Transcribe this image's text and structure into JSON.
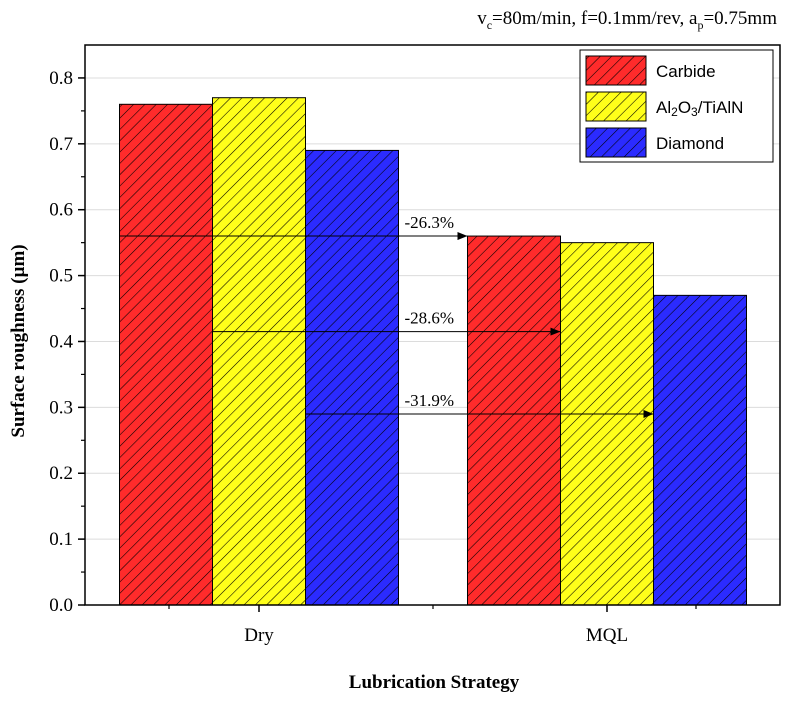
{
  "chart_data": {
    "type": "bar",
    "title": "",
    "conditions": {
      "vc_base": "v",
      "vc_sub": "c",
      "vc_rest": "=80m/min, f=0.1mm/rev, a",
      "ap_sub": "p",
      "ap_rest": "=0.75mm"
    },
    "xlabel": "Lubrication Strategy",
    "ylabel": "Surface roughness (µm)",
    "ylim": [
      0,
      0.85
    ],
    "yticks": [
      "0.0",
      "0.1",
      "0.2",
      "0.3",
      "0.4",
      "0.5",
      "0.6",
      "0.7",
      "0.8"
    ],
    "ytick_values": [
      0,
      0.1,
      0.2,
      0.3,
      0.4,
      0.5,
      0.6,
      0.7,
      0.8
    ],
    "grid": true,
    "legend_position": "top-right",
    "categories": [
      "Dry",
      "MQL"
    ],
    "series": [
      {
        "name": "Carbide",
        "values": [
          0.76,
          0.56
        ],
        "color": "#ff2b2b"
      },
      {
        "name": "Al2O3/TiAlN",
        "name_parts": [
          "Al",
          "2",
          "O",
          "3",
          "/TiAlN"
        ],
        "values": [
          0.77,
          0.55
        ],
        "color": "#ffff1a"
      },
      {
        "name": "Diamond",
        "values": [
          0.69,
          0.47
        ],
        "color": "#2b2bff"
      }
    ],
    "annotations": [
      {
        "text": "-26.3%",
        "series_index": 0,
        "at_value": 0.56
      },
      {
        "text": "-28.6%",
        "series_index": 1,
        "at_value": 0.415
      },
      {
        "text": "-31.9%",
        "series_index": 2,
        "at_value": 0.29
      }
    ]
  }
}
